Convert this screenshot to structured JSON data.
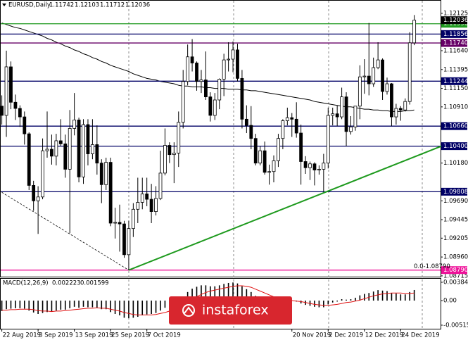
{
  "chart_data": [
    {
      "type": "candlestick",
      "symbol": "EURUSD,Daily",
      "categories": [
        "22 Aug 2019",
        null,
        null,
        null,
        null,
        null,
        null,
        null,
        "3 Sep 2019",
        null,
        null,
        null,
        null,
        null,
        null,
        null,
        "13 Sep 2019",
        null,
        null,
        null,
        null,
        null,
        null,
        null,
        "25 Sep 2019",
        null,
        null,
        null,
        null,
        null,
        null,
        null,
        "7 Oct 2019",
        null,
        null,
        null,
        null,
        null,
        null,
        null,
        null,
        null,
        null,
        null,
        null,
        null,
        null,
        null,
        null,
        null,
        null,
        null,
        null,
        null,
        null,
        null,
        null,
        null,
        null,
        null,
        null,
        null,
        null,
        null,
        "20 Nov 2019",
        null,
        null,
        null,
        null,
        null,
        null,
        null,
        "2 Dec 2019",
        null,
        null,
        null,
        null,
        null,
        null,
        null,
        "12 Dec 2019",
        null,
        null,
        null,
        null,
        null,
        null,
        null,
        "24 Dec 2019",
        null,
        null,
        null
      ],
      "ohlc": [
        [
          1.1092,
          1.1106,
          1.1068,
          1.108
        ],
        [
          1.108,
          1.1164,
          1.1052,
          1.1143
        ],
        [
          1.1143,
          1.115,
          1.1088,
          1.1097
        ],
        [
          1.1097,
          1.1107,
          1.1074,
          1.1089
        ],
        [
          1.1089,
          1.1093,
          1.1065,
          1.1078
        ],
        [
          1.1078,
          1.1085,
          1.1042,
          1.1056
        ],
        [
          1.1056,
          1.1058,
          1.0983,
          1.0989
        ],
        [
          1.0989,
          1.0995,
          1.0956,
          1.0969
        ],
        [
          1.0969,
          1.0988,
          1.0926,
          1.0974
        ],
        [
          1.0974,
          1.105,
          1.0971,
          1.1034
        ],
        [
          1.1034,
          1.1085,
          1.1025,
          1.1036
        ],
        [
          1.1036,
          1.1055,
          1.1016,
          1.1027
        ],
        [
          1.1027,
          1.1056,
          1.1015,
          1.1047
        ],
        [
          1.1047,
          1.1075,
          1.104,
          1.1043
        ],
        [
          1.1043,
          1.1055,
          1.0999,
          1.101
        ],
        [
          1.101,
          1.1087,
          1.0927,
          1.1063
        ],
        [
          1.1063,
          1.1109,
          1.1054,
          1.1074
        ],
        [
          1.1074,
          1.1077,
          1.0993,
          1.1
        ],
        [
          1.1,
          1.1075,
          1.0991,
          1.1068
        ],
        [
          1.1068,
          1.1075,
          1.1015,
          1.103
        ],
        [
          1.103,
          1.1075,
          1.1023,
          1.1042
        ],
        [
          1.1042,
          1.1067,
          1.1003,
          1.1018
        ],
        [
          1.1018,
          1.1023,
          1.0966,
          1.099
        ],
        [
          1.099,
          1.1025,
          1.0983,
          1.1019
        ],
        [
          1.1019,
          1.1025,
          1.0936,
          1.094
        ],
        [
          1.094,
          1.096,
          1.092,
          1.0941
        ],
        [
          1.0941,
          1.0964,
          1.0903,
          1.0939
        ],
        [
          1.0939,
          1.0943,
          1.0895,
          1.0899
        ],
        [
          1.0899,
          1.0943,
          1.0879,
          1.0933
        ],
        [
          1.0933,
          1.0966,
          1.0922,
          1.0958
        ],
        [
          1.0958,
          1.0999,
          1.094,
          1.0967
        ],
        [
          1.0967,
          1.0999,
          1.0958,
          1.0978
        ],
        [
          1.0978,
          1.0999,
          1.0962,
          1.0971
        ],
        [
          1.0971,
          1.0991,
          1.094,
          1.0955
        ],
        [
          1.0955,
          1.0988,
          1.095,
          1.0972
        ],
        [
          1.0972,
          1.1034,
          1.097,
          1.1005
        ],
        [
          1.1005,
          1.1063,
          1.1002,
          1.1041
        ],
        [
          1.1041,
          1.1045,
          1.1018,
          1.1029
        ],
        [
          1.1029,
          1.1045,
          1.0992,
          1.1031
        ],
        [
          1.1031,
          1.1085,
          1.1013,
          1.1071
        ],
        [
          1.1071,
          1.1139,
          1.1063,
          1.1124
        ],
        [
          1.1124,
          1.1172,
          1.1119,
          1.1156
        ],
        [
          1.1156,
          1.1179,
          1.1137,
          1.1148
        ],
        [
          1.1148,
          1.115,
          1.1112,
          1.1124
        ],
        [
          1.1124,
          1.1139,
          1.1109,
          1.1126
        ],
        [
          1.1126,
          1.1163,
          1.11,
          1.1104
        ],
        [
          1.1104,
          1.111,
          1.1072,
          1.108
        ],
        [
          1.108,
          1.1109,
          1.1074,
          1.11
        ],
        [
          1.11,
          1.1128,
          1.1088,
          1.1127
        ],
        [
          1.1127,
          1.116,
          1.1105,
          1.1152
        ],
        [
          1.1152,
          1.1175,
          1.1137,
          1.1153
        ],
        [
          1.1153,
          1.1176,
          1.1136,
          1.1165
        ],
        [
          1.1165,
          1.1173,
          1.1124,
          1.1128
        ],
        [
          1.1128,
          1.1139,
          1.1063,
          1.1075
        ],
        [
          1.1075,
          1.1093,
          1.1057,
          1.1067
        ],
        [
          1.1067,
          1.1092,
          1.1036,
          1.105
        ],
        [
          1.105,
          1.1056,
          1.1015,
          1.1018
        ],
        [
          1.1018,
          1.104,
          1.1015,
          1.1034
        ],
        [
          1.1034,
          1.1046,
          1.1003,
          1.1006
        ],
        [
          1.1006,
          1.1016,
          1.099,
          1.1007
        ],
        [
          1.1007,
          1.1028,
          1.0993,
          1.1021
        ],
        [
          1.1021,
          1.1056,
          1.1013,
          1.105
        ],
        [
          1.105,
          1.1075,
          1.1036,
          1.1073
        ],
        [
          1.1073,
          1.109,
          1.1067,
          1.1077
        ],
        [
          1.1077,
          1.1083,
          1.1052,
          1.1075
        ],
        [
          1.1075,
          1.1097,
          1.1051,
          1.1057
        ],
        [
          1.1057,
          1.1068,
          1.099,
          1.102
        ],
        [
          1.102,
          1.1027,
          1.1004,
          1.1012
        ],
        [
          1.1012,
          1.102,
          1.0996,
          1.1017
        ],
        [
          1.1017,
          1.1019,
          1.0989,
          1.1009
        ],
        [
          1.1009,
          1.1015,
          1.1003,
          1.101
        ],
        [
          1.101,
          1.103,
          1.0981,
          1.1018
        ],
        [
          1.1018,
          1.109,
          1.1011,
          1.108
        ],
        [
          1.108,
          1.109,
          1.1067,
          1.1082
        ],
        [
          1.1082,
          1.1093,
          1.1066,
          1.1078
        ],
        [
          1.1078,
          1.1116,
          1.1075,
          1.1104
        ],
        [
          1.1104,
          1.111,
          1.104,
          1.1059
        ],
        [
          1.1059,
          1.1079,
          1.1055,
          1.1065
        ],
        [
          1.1065,
          1.1092,
          1.106,
          1.1092
        ],
        [
          1.1092,
          1.1145,
          1.1075,
          1.113
        ],
        [
          1.113,
          1.1153,
          1.1108,
          1.1131
        ],
        [
          1.1131,
          1.12,
          1.1106,
          1.1121
        ],
        [
          1.1121,
          1.1155,
          1.1117,
          1.1142
        ],
        [
          1.1142,
          1.1175,
          1.114,
          1.1152
        ],
        [
          1.1152,
          1.1154,
          1.11,
          1.1111
        ],
        [
          1.1111,
          1.1129,
          1.1107,
          1.1121
        ],
        [
          1.1121,
          1.1122,
          1.1066,
          1.1078
        ],
        [
          1.1078,
          1.1095,
          1.1068,
          1.1089
        ],
        [
          1.1089,
          1.1092,
          1.1073,
          1.1087
        ],
        [
          1.1087,
          1.1102,
          1.1085,
          1.1098
        ],
        [
          1.1098,
          1.1188,
          1.1094,
          1.11742
        ],
        [
          1.11742,
          1.12103,
          1.11712,
          1.12036
        ]
      ],
      "series": [
        {
          "color": "#000000",
          "values": [
            1.12,
            1.1198,
            1.1196,
            1.1194,
            1.1193,
            1.1191,
            1.1189,
            1.1187,
            1.1185,
            1.1183,
            1.118,
            1.1178,
            1.1175,
            1.1173,
            1.117,
            1.1168,
            1.1165,
            1.1163,
            1.116,
            1.1158,
            1.1155,
            1.1153,
            1.115,
            1.1148,
            1.1145,
            1.1143,
            1.1141,
            1.1139,
            1.1137,
            1.1134,
            1.1132,
            1.113,
            1.1128,
            1.1127,
            1.1126,
            1.1124,
            1.1123,
            1.1122,
            1.1121,
            1.1119,
            1.1118,
            1.1118,
            1.1117,
            1.1117,
            1.1117,
            1.1116,
            1.1116,
            1.1115,
            1.1115,
            1.1115,
            1.1114,
            1.1114,
            1.1114,
            1.1113,
            1.1113,
            1.1112,
            1.1112,
            1.1111,
            1.111,
            1.1109,
            1.1108,
            1.1107,
            1.1106,
            1.1105,
            1.1104,
            1.1103,
            1.1102,
            1.1101,
            1.11,
            1.1098,
            1.1097,
            1.1096,
            1.1095,
            1.1094,
            1.1093,
            1.1092,
            1.1091,
            1.1091,
            1.109,
            1.1089,
            1.1088,
            1.1088,
            1.1087,
            1.1087,
            1.1086,
            1.1086,
            1.1085,
            1.1085,
            1.1085,
            1.1086,
            1.1086,
            1.1087
          ]
        }
      ],
      "ylim": [
        1.08705,
        1.1228
      ],
      "yticks": [
        1.12125,
        {
          "value": 1.1164,
          "label": "1.11640"
        },
        1.11395,
        {
          "value": 1.1115,
          "label": "1.11150"
        },
        {
          "value": 1.1091,
          "label": "1.10910"
        },
        {
          "value": 1.1018,
          "label": "1.10180"
        },
        {
          "value": 1.0969,
          "label": "1.09690"
        },
        1.09445,
        1.09205,
        {
          "value": 1.0896,
          "label": "1.08960"
        },
        1.08715
      ],
      "levels": [
        {
          "value": 1.1199,
          "label": "1.11990",
          "color": "#1e9a1e"
        },
        {
          "value": 1.11856,
          "color": "#000066"
        },
        {
          "value": 1.1174,
          "label": "1.11740",
          "color": "#660066"
        },
        {
          "value": 1.11244,
          "color": "#000066"
        },
        {
          "value": 1.1066,
          "label": "1.10660",
          "color": "#000066"
        },
        {
          "value": 1.104,
          "label": "1.10400",
          "color": "#000066"
        },
        {
          "value": 1.09808,
          "color": "#000066"
        },
        {
          "value": 1.0879,
          "label": "1.08790",
          "color": "#ee1199"
        }
      ],
      "trendlines": [
        {
          "color": "#1e9a1e",
          "x": [
            28,
            97
          ],
          "y": [
            1.0879,
            1.104
          ]
        },
        {
          "color": "#000000",
          "x": [
            0,
            28
          ],
          "y": [
            1.098,
            1.0879
          ]
        }
      ],
      "fibo_label": "0.0-1.08790",
      "watermark": "instaforex"
    },
    {
      "type": "macd",
      "title": "MACD(12,26,9)",
      "histogram": [
        -0.0022,
        -0.0018,
        -0.0017,
        -0.0016,
        -0.0016,
        -0.0017,
        -0.0021,
        -0.0025,
        -0.0028,
        -0.0026,
        -0.0024,
        -0.0023,
        -0.0021,
        -0.0019,
        -0.0019,
        -0.0016,
        -0.0013,
        -0.0015,
        -0.0013,
        -0.0014,
        -0.0014,
        -0.0015,
        -0.0018,
        -0.0018,
        -0.0024,
        -0.0028,
        -0.0031,
        -0.0036,
        -0.0037,
        -0.0036,
        -0.0034,
        -0.0031,
        -0.0029,
        -0.0028,
        -0.0026,
        -0.0021,
        -0.0015,
        -0.0011,
        -0.0008,
        -0.0002,
        0.0008,
        0.0018,
        0.0025,
        0.0029,
        0.0032,
        0.0032,
        0.003,
        0.003,
        0.0032,
        0.0035,
        0.0037,
        0.0038,
        0.0036,
        0.003,
        0.0024,
        0.0018,
        0.001,
        0.0005,
        -0.0001,
        -0.0005,
        -0.0007,
        -0.0006,
        -0.0003,
        -0.0001,
        0,
        -0.0002,
        -0.0006,
        -0.0009,
        -0.0011,
        -0.0013,
        -0.0014,
        -0.0014,
        -0.0008,
        -0.0004,
        -0.0002,
        0.0003,
        0.0002,
        0.0003,
        0.0006,
        0.0011,
        0.0014,
        0.0016,
        0.0019,
        0.0022,
        0.0021,
        0.002,
        0.0016,
        0.0015,
        0.0013,
        0.0013,
        0.0018,
        0.002223
      ],
      "signal": [
        -0.002,
        -0.002,
        -0.0019,
        -0.0019,
        -0.0018,
        -0.0018,
        -0.0018,
        -0.0019,
        -0.0021,
        -0.0022,
        -0.0022,
        -0.0023,
        -0.0022,
        -0.0022,
        -0.0021,
        -0.002,
        -0.0019,
        -0.0018,
        -0.0017,
        -0.0016,
        -0.0016,
        -0.0015,
        -0.0016,
        -0.0016,
        -0.0018,
        -0.002,
        -0.0022,
        -0.0025,
        -0.0027,
        -0.0029,
        -0.003,
        -0.003,
        -0.003,
        -0.003,
        -0.0029,
        -0.0027,
        -0.0025,
        -0.0022,
        -0.0019,
        -0.0015,
        -0.001,
        -0.0004,
        0.0002,
        0.0008,
        0.0013,
        0.0017,
        0.002,
        0.0022,
        0.0024,
        0.0026,
        0.0028,
        0.003,
        0.0031,
        0.0031,
        0.003,
        0.0028,
        0.0024,
        0.002,
        0.0016,
        0.0012,
        0.0008,
        0.0005,
        0.0003,
        0.0001,
        0,
        -0.0001,
        -0.0002,
        -0.0004,
        -0.0006,
        -0.0008,
        -0.0009,
        -0.001,
        -0.001,
        -0.0009,
        -0.0008,
        -0.0006,
        -0.0004,
        -0.0003,
        -0.0001,
        0.0001,
        0.0004,
        0.0007,
        0.001,
        0.0012,
        0.0014,
        0.0015,
        0.0016,
        0.0016,
        0.0016,
        0.0015,
        0.0015,
        0.001599
      ],
      "histogram_color": "#000000",
      "signal_color": "#e01010",
      "ylim": [
        -0.0059,
        0.00458
      ],
      "yticks": [
        0.003845,
        {
          "value": 0,
          "label": "0.00"
        },
        -0.005154
      ]
    }
  ]
}
